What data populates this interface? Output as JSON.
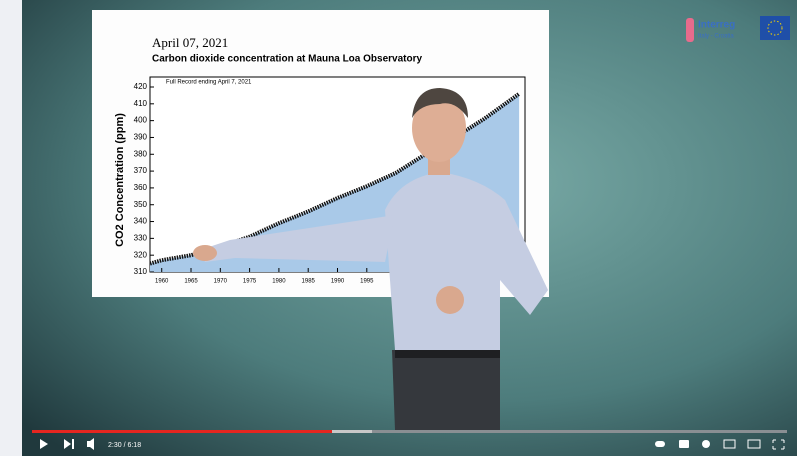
{
  "player": {
    "time": "2:30 / 6:18",
    "logo": "Interreg",
    "logo_sub": "Italy - Croatia"
  },
  "slide": {
    "date": "April 07, 2021",
    "title": "Carbon dioxide concentration at Mauna Loa Observatory",
    "note": "Full Record ending April 7, 2021",
    "y_label": "CO2 Concentration (ppm)",
    "xlim": [
      1958,
      2022
    ],
    "ylim": [
      310,
      420
    ],
    "xticks": [
      1960,
      1965,
      1970,
      1975,
      1980,
      1985,
      1990,
      1995
    ],
    "yticks": [
      310,
      320,
      330,
      340,
      350,
      360,
      370,
      380,
      390,
      400,
      410,
      420
    ],
    "x": [
      1958,
      1960,
      1965,
      1970,
      1975,
      1980,
      1985,
      1990,
      1995,
      2000,
      2005,
      2010,
      2015,
      2021
    ],
    "values": [
      315,
      317,
      320,
      325,
      331,
      339,
      346,
      354,
      361,
      369,
      380,
      390,
      401,
      416
    ]
  }
}
